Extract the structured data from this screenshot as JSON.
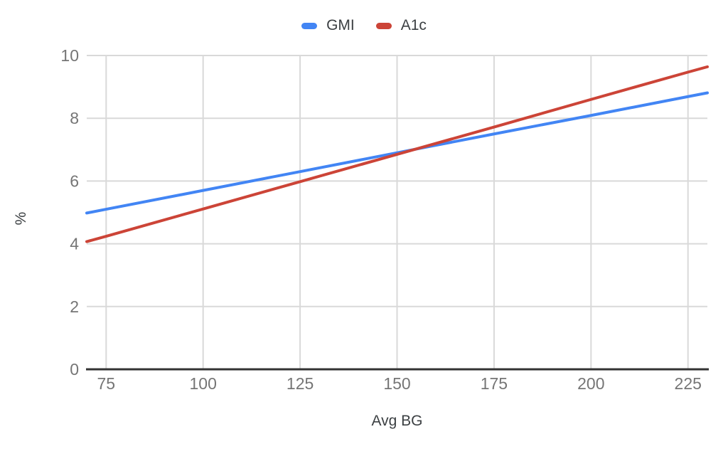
{
  "chart_data": {
    "type": "line",
    "title": "",
    "xlabel": "Avg BG",
    "ylabel": "%",
    "xlim": [
      70,
      230
    ],
    "ylim": [
      0,
      10
    ],
    "xticks": [
      75,
      100,
      125,
      150,
      175,
      200,
      225
    ],
    "yticks": [
      0,
      2,
      4,
      6,
      8,
      10
    ],
    "grid": true,
    "legend_position": "top-center",
    "x": [
      70,
      75,
      100,
      125,
      150,
      175,
      200,
      225,
      230
    ],
    "series": [
      {
        "name": "GMI",
        "color": "#4285f4",
        "values": [
          4.98,
          5.1,
          5.7,
          6.3,
          6.9,
          7.5,
          8.09,
          8.69,
          8.81
        ]
      },
      {
        "name": "A1c",
        "color": "#cc4437",
        "values": [
          4.07,
          4.24,
          5.11,
          5.98,
          6.85,
          7.72,
          8.6,
          9.47,
          9.64
        ]
      }
    ],
    "colors": {
      "background": "#ffffff",
      "grid": "#d9d9d9",
      "axis": "#333333",
      "tick_label": "#757575",
      "text": "#3c4043"
    }
  }
}
